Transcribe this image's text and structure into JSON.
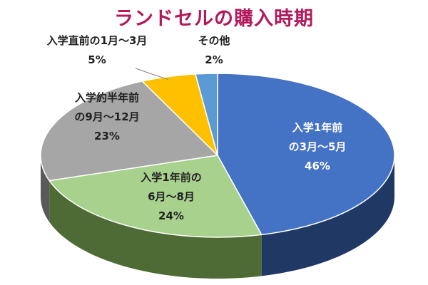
{
  "chart_data": {
    "type": "pie",
    "title": "ランドセルの購入時期",
    "three_d": true,
    "legend": "none",
    "slices": [
      {
        "lines": [
          "入学1年前",
          "の3月～5月"
        ],
        "pct": "46%",
        "value": 46,
        "color": "#4472c4",
        "side": "#1f3864"
      },
      {
        "lines": [
          "入学1年前の",
          "6月～8月"
        ],
        "pct": "24%",
        "value": 24,
        "color": "#a9d18e",
        "side": "#4e6a35"
      },
      {
        "lines": [
          "入学約半年前",
          "の9月～12月"
        ],
        "pct": "23%",
        "value": 23,
        "color": "#a6a6a6",
        "side": "#595959"
      },
      {
        "lines": [
          "入学直前の1月～3月"
        ],
        "pct": "5%",
        "value": 5,
        "color": "#ffc000",
        "side": "#a87f00"
      },
      {
        "lines": [
          "その他"
        ],
        "pct": "2%",
        "value": 2,
        "color": "#5b9bd5",
        "side": "#2e5e8c"
      }
    ]
  }
}
